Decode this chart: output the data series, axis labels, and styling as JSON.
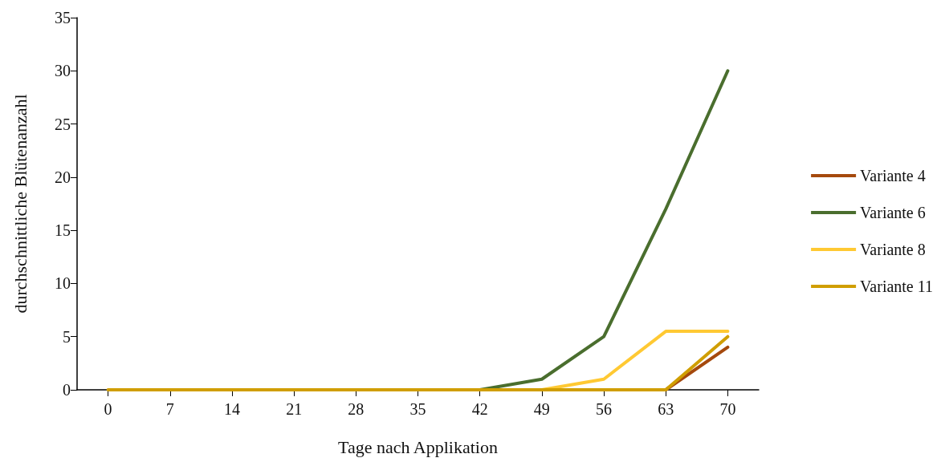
{
  "chart_data": {
    "type": "line",
    "xlabel": "Tage nach Applikation",
    "ylabel": "durchschnittliche Blütenanzahl",
    "categories": [
      "0",
      "7",
      "14",
      "21",
      "28",
      "35",
      "42",
      "49",
      "56",
      "63",
      "70"
    ],
    "series": [
      {
        "name": "Variante 4",
        "color": "#a5490d",
        "values": [
          null,
          null,
          null,
          null,
          null,
          null,
          null,
          null,
          null,
          0,
          4
        ]
      },
      {
        "name": "Variante 6",
        "color": "#4a6e2e",
        "values": [
          null,
          null,
          null,
          null,
          null,
          null,
          0,
          1,
          5,
          17,
          30
        ]
      },
      {
        "name": "Variante 8",
        "color": "#ffc933",
        "values": [
          null,
          null,
          null,
          null,
          null,
          null,
          null,
          0,
          1,
          5.5,
          5.5
        ]
      },
      {
        "name": "Variante 11",
        "color": "#d09e00",
        "values": [
          0,
          0,
          0,
          0,
          0,
          0,
          0,
          0,
          0,
          0,
          5
        ]
      }
    ],
    "ylim": [
      0,
      35
    ],
    "yticks": [
      0,
      5,
      10,
      15,
      20,
      25,
      30,
      35
    ],
    "grid": false,
    "legend": "right",
    "marker": "none",
    "line_style": "solid"
  }
}
